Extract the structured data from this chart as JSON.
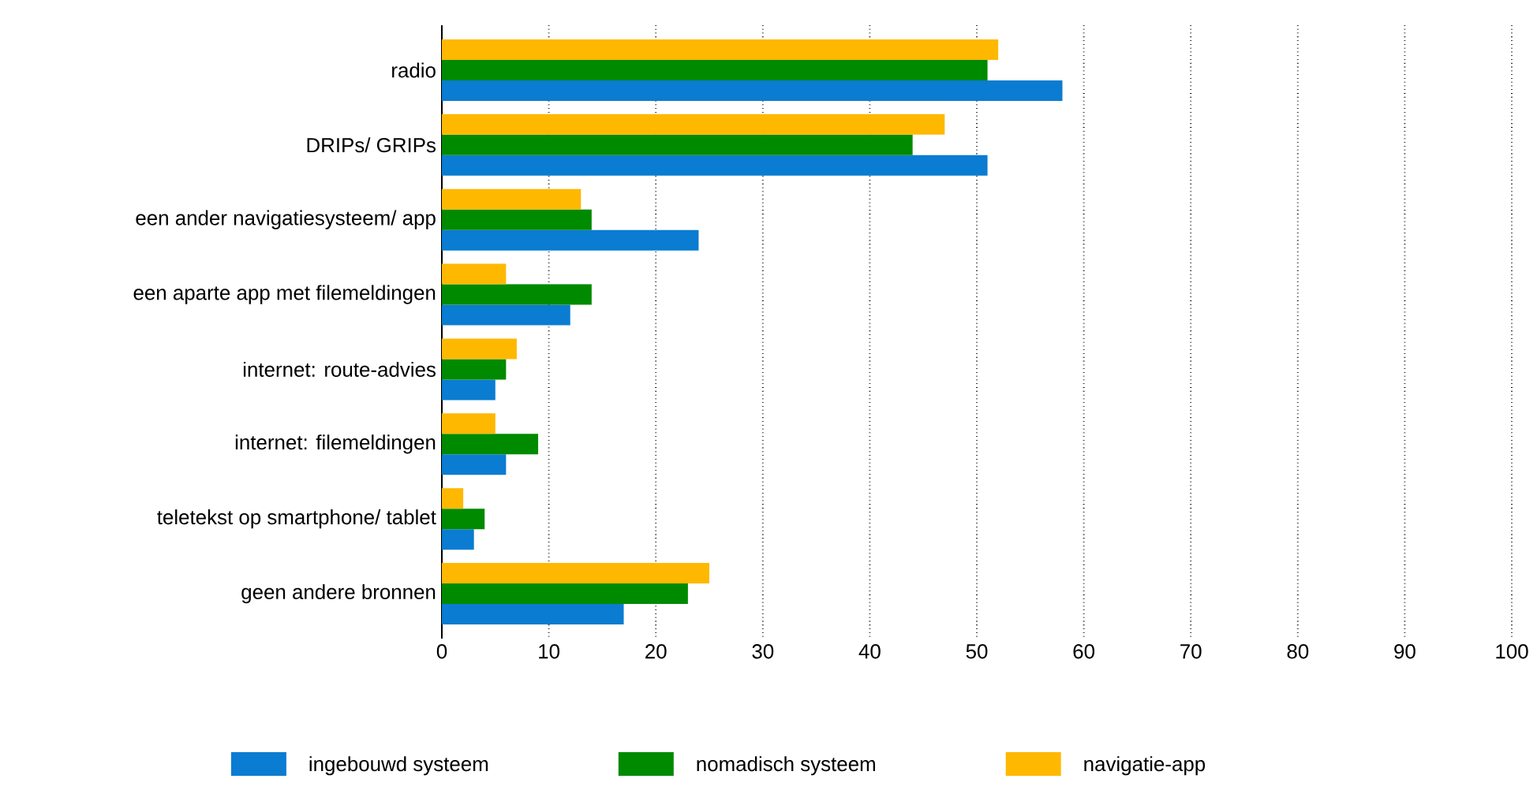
{
  "chart_data": {
    "type": "bar",
    "orientation": "horizontal",
    "categories": [
      "radio",
      "DRIPs/ GRIPs",
      "een ander navigatiesysteem/ app",
      "een aparte app met filemeldingen",
      "internet: route-advies",
      "internet: filemeldingen",
      "teletekst op smartphone/ tablet",
      "geen andere bronnen"
    ],
    "series": [
      {
        "name": "ingebouwd systeem",
        "color": "#0a7cd1",
        "values": [
          58,
          51,
          24,
          12,
          5,
          6,
          3,
          17
        ]
      },
      {
        "name": "nomadisch systeem",
        "color": "#008a00",
        "values": [
          51,
          44,
          14,
          14,
          6,
          9,
          4,
          23
        ]
      },
      {
        "name": "navigatie-app",
        "color": "#ffb800",
        "values": [
          52,
          47,
          13,
          6,
          7,
          5,
          2,
          25
        ]
      }
    ],
    "xlim": [
      0,
      100
    ],
    "xticks": [
      0,
      10,
      20,
      30,
      40,
      50,
      60,
      70,
      80,
      90,
      100
    ],
    "grid": "x",
    "legend": "bottom"
  }
}
